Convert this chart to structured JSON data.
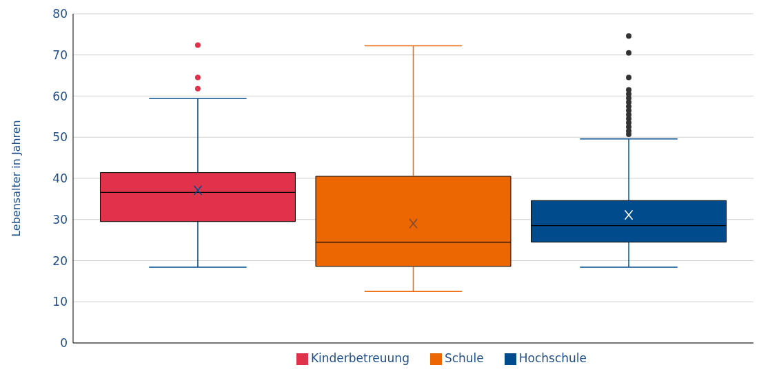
{
  "chart_data": {
    "type": "box",
    "ylabel": "Lebensalter in Jahren",
    "categories": [
      null
    ],
    "series": [
      {
        "name": "Kinderbetreuung",
        "color": "#e0334b",
        "boxes": [
          {
            "low": 18.4,
            "q1": 29.5,
            "median": 36.6,
            "q3": 41.4,
            "high": 59.4,
            "mean": 37.1,
            "outliers": [
              61.8,
              64.5,
              72.4
            ]
          }
        ]
      },
      {
        "name": "Schule",
        "color": "#ec6602",
        "boxes": [
          {
            "low": 12.5,
            "q1": 18.6,
            "median": 24.5,
            "q3": 40.5,
            "high": 72.2,
            "mean": 29.0
          }
        ]
      },
      {
        "name": "Hochschule",
        "color": "#004b8c",
        "boxes": [
          {
            "low": 18.4,
            "q1": 24.5,
            "median": 28.5,
            "q3": 34.6,
            "high": 49.6,
            "mean": 31.1,
            "outliers": [
              50.7,
              51.5,
              52.5,
              53.5,
              54.5,
              55.5,
              56.5,
              57.5,
              58.5,
              59.5,
              60.5,
              61.5,
              64.5,
              70.5,
              74.6
            ]
          }
        ]
      }
    ],
    "ylim": [
      0,
      80
    ],
    "yticks": [
      0,
      10,
      20,
      30,
      40,
      50,
      60,
      70,
      80
    ],
    "grid": "y",
    "legend": "bottom",
    "tick_labels": "y"
  }
}
